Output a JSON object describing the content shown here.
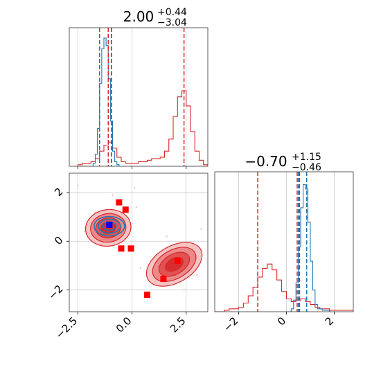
{
  "chart_data": {
    "type": "corner",
    "colors": {
      "blue": "#1f77b4",
      "red": "#d62728",
      "marker_red": "#ff0000",
      "marker_blue": "#0000ff"
    },
    "grid": true,
    "parameters": [
      {
        "title_main": "2.00",
        "title_plus": "+0.44",
        "title_minus": "−3.04",
        "range": [
          -2.9,
          3.5
        ]
      },
      {
        "title_main": "−0.70",
        "title_plus": "+1.15",
        "title_minus": "−0.46",
        "range": [
          -3.0,
          2.8
        ]
      }
    ],
    "ticks": {
      "x0": [
        {
          "v": -2.5,
          "label": "−2.5"
        },
        {
          "v": 0.0,
          "label": "0.0"
        },
        {
          "v": 2.5,
          "label": "2.5"
        }
      ],
      "y1": [
        {
          "v": 2,
          "label": "2"
        },
        {
          "v": 0,
          "label": "0"
        },
        {
          "v": -2,
          "label": "−2"
        }
      ],
      "x1": [
        {
          "v": -2,
          "label": "−2"
        },
        {
          "v": 0,
          "label": "0"
        },
        {
          "v": 2,
          "label": "2"
        }
      ]
    },
    "hist0": {
      "blue": [
        [
          -2.4,
          0
        ],
        [
          -1.9,
          0
        ],
        [
          -1.8,
          0.02
        ],
        [
          -1.7,
          0.08
        ],
        [
          -1.6,
          0.25
        ],
        [
          -1.5,
          0.55
        ],
        [
          -1.4,
          0.78
        ],
        [
          -1.3,
          0.85
        ],
        [
          -1.2,
          0.8
        ],
        [
          -1.1,
          0.58
        ],
        [
          -1.0,
          0.3
        ],
        [
          -0.9,
          0.1
        ],
        [
          -0.8,
          0.03
        ],
        [
          -0.7,
          0.01
        ],
        [
          -0.6,
          0
        ]
      ],
      "red": [
        [
          -2.7,
          0
        ],
        [
          -2.5,
          0.01
        ],
        [
          -2.3,
          0.02
        ],
        [
          -2.1,
          0.02
        ],
        [
          -1.9,
          0.03
        ],
        [
          -1.7,
          0.05
        ],
        [
          -1.5,
          0.1
        ],
        [
          -1.3,
          0.14
        ],
        [
          -1.1,
          0.16
        ],
        [
          -0.9,
          0.12
        ],
        [
          -0.7,
          0.06
        ],
        [
          -0.5,
          0.03
        ],
        [
          -0.3,
          0.02
        ],
        [
          -0.1,
          0.02
        ],
        [
          0.1,
          0.02
        ],
        [
          0.3,
          0.03
        ],
        [
          0.5,
          0.03
        ],
        [
          0.7,
          0.04
        ],
        [
          0.9,
          0.05
        ],
        [
          1.1,
          0.05
        ],
        [
          1.3,
          0.06
        ],
        [
          1.5,
          0.1
        ],
        [
          1.7,
          0.18
        ],
        [
          1.9,
          0.33
        ],
        [
          2.1,
          0.46
        ],
        [
          2.3,
          0.5
        ],
        [
          2.5,
          0.4
        ],
        [
          2.7,
          0.23
        ],
        [
          2.9,
          0.1
        ],
        [
          3.1,
          0.04
        ],
        [
          3.3,
          0.01
        ],
        [
          3.5,
          0
        ]
      ],
      "ymax": 0.9,
      "blue_lines": [
        -1.5,
        -0.95
      ],
      "red_lines": [
        -1.1,
        -0.95,
        2.4
      ]
    },
    "hist1": {
      "blue": [
        [
          0.0,
          0
        ],
        [
          0.2,
          0.02
        ],
        [
          0.3,
          0.08
        ],
        [
          0.4,
          0.2
        ],
        [
          0.5,
          0.45
        ],
        [
          0.6,
          0.72
        ],
        [
          0.7,
          0.88
        ],
        [
          0.8,
          0.85
        ],
        [
          0.9,
          0.62
        ],
        [
          1.0,
          0.35
        ],
        [
          1.1,
          0.15
        ],
        [
          1.2,
          0.05
        ],
        [
          1.3,
          0.02
        ],
        [
          1.5,
          0.01
        ],
        [
          1.8,
          0
        ]
      ],
      "red": [
        [
          -3.0,
          0
        ],
        [
          -2.6,
          0.01
        ],
        [
          -2.4,
          0.02
        ],
        [
          -2.2,
          0.02
        ],
        [
          -2.0,
          0.03
        ],
        [
          -1.8,
          0.06
        ],
        [
          -1.6,
          0.11
        ],
        [
          -1.4,
          0.17
        ],
        [
          -1.2,
          0.24
        ],
        [
          -1.0,
          0.3
        ],
        [
          -0.8,
          0.33
        ],
        [
          -0.6,
          0.29
        ],
        [
          -0.4,
          0.22
        ],
        [
          -0.2,
          0.14
        ],
        [
          0.0,
          0.09
        ],
        [
          0.2,
          0.07
        ],
        [
          0.4,
          0.08
        ],
        [
          0.6,
          0.09
        ],
        [
          0.8,
          0.07
        ],
        [
          1.0,
          0.05
        ],
        [
          1.2,
          0.03
        ],
        [
          1.4,
          0.02
        ],
        [
          1.8,
          0.01
        ],
        [
          2.4,
          0.01
        ],
        [
          2.8,
          0
        ]
      ],
      "ymax": 0.95,
      "blue_lines": [
        0.5,
        0.85
      ],
      "red_lines": [
        -1.2,
        0.45,
        0.55
      ]
    },
    "scatter_2d": {
      "blue_centers": [
        {
          "x": -1.05,
          "y": 0.62
        }
      ],
      "red_clusters": [
        {
          "x": -1.1,
          "y": 0.55,
          "rx": 1.05,
          "ry": 0.75
        },
        {
          "x": 1.95,
          "y": -0.95,
          "rx": 1.4,
          "ry": 0.75
        }
      ],
      "red_points": [
        {
          "x": -0.6,
          "y": 1.6
        },
        {
          "x": -0.3,
          "y": 1.3
        },
        {
          "x": -0.5,
          "y": -0.3
        },
        {
          "x": -0.05,
          "y": -0.3
        },
        {
          "x": 2.1,
          "y": -0.8
        },
        {
          "x": 1.45,
          "y": -1.55
        },
        {
          "x": 0.7,
          "y": -2.2
        }
      ],
      "blue_point": {
        "x": -1.05,
        "y": 0.68
      }
    }
  }
}
